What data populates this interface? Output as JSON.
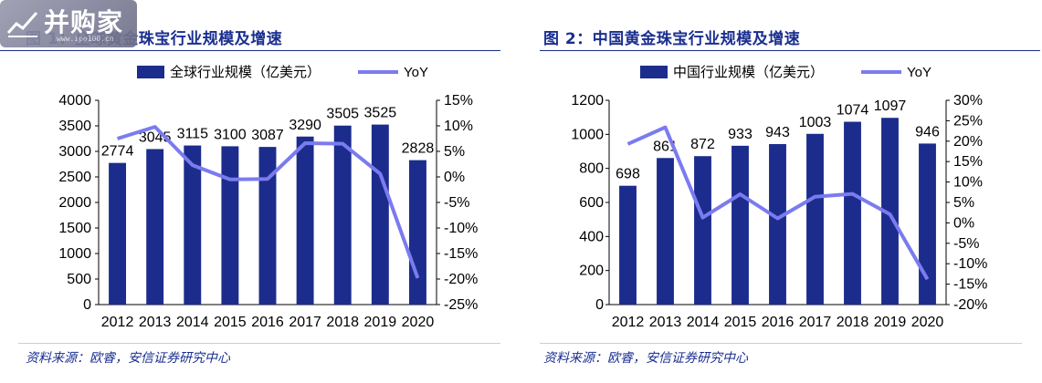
{
  "watermark": {
    "text": "并购家",
    "url": "www.ipo100.cn"
  },
  "panels": [
    {
      "title": "图 1：全球黄金珠宝行业规模及增速",
      "source": "资料来源：欧睿，安信证券研究中心",
      "legend_bar": "全球行业规模（亿美元）",
      "legend_line": "YoY"
    },
    {
      "title": "图 2：中国黄金珠宝行业规模及增速",
      "source": "资料来源：欧睿，安信证券研究中心",
      "legend_bar": "中国行业规模（亿美元）",
      "legend_line": "YoY"
    }
  ],
  "colors": {
    "bar": "#1c2c8c",
    "line": "#7b7bf0",
    "title": "#1a2e8f"
  },
  "chart_data": [
    {
      "type": "bar",
      "title": "全球黄金珠宝行业规模及增速",
      "categories": [
        "2012",
        "2013",
        "2014",
        "2015",
        "2016",
        "2017",
        "2018",
        "2019",
        "2020"
      ],
      "series": [
        {
          "name": "全球行业规模（亿美元）",
          "type": "bar",
          "axis": "left",
          "values": [
            2774,
            3045,
            3115,
            3100,
            3087,
            3290,
            3505,
            3525,
            2828
          ]
        },
        {
          "name": "YoY",
          "type": "line",
          "axis": "right",
          "values": [
            7.5,
            9.8,
            2.3,
            -0.5,
            -0.4,
            6.6,
            6.5,
            0.6,
            -19.8
          ]
        }
      ],
      "ylim_left": [
        0,
        4000
      ],
      "yticks_left": [
        "0",
        "500",
        "1000",
        "1500",
        "2000",
        "2500",
        "3000",
        "3500",
        "4000"
      ],
      "ylim_right": [
        -25,
        15
      ],
      "yticks_right": [
        "-25%",
        "-20%",
        "-15%",
        "-10%",
        "-5%",
        "0%",
        "5%",
        "10%",
        "15%"
      ],
      "legend": "top"
    },
    {
      "type": "bar",
      "title": "中国黄金珠宝行业规模及增速",
      "categories": [
        "2012",
        "2013",
        "2014",
        "2015",
        "2016",
        "2017",
        "2018",
        "2019",
        "2020"
      ],
      "series": [
        {
          "name": "中国行业规模（亿美元）",
          "type": "bar",
          "axis": "left",
          "values": [
            698,
            861,
            872,
            933,
            943,
            1003,
            1074,
            1097,
            946
          ]
        },
        {
          "name": "YoY",
          "type": "line",
          "axis": "right",
          "values": [
            19.3,
            23.4,
            1.3,
            7.0,
            1.1,
            6.4,
            7.1,
            2.1,
            -13.8
          ]
        }
      ],
      "ylim_left": [
        0,
        1200
      ],
      "yticks_left": [
        "0",
        "200",
        "400",
        "600",
        "800",
        "1000",
        "1200"
      ],
      "ylim_right": [
        -20,
        30
      ],
      "yticks_right": [
        "-20%",
        "-15%",
        "-10%",
        "-5%",
        "0%",
        "5%",
        "10%",
        "15%",
        "20%",
        "25%",
        "30%"
      ],
      "legend": "top"
    }
  ]
}
